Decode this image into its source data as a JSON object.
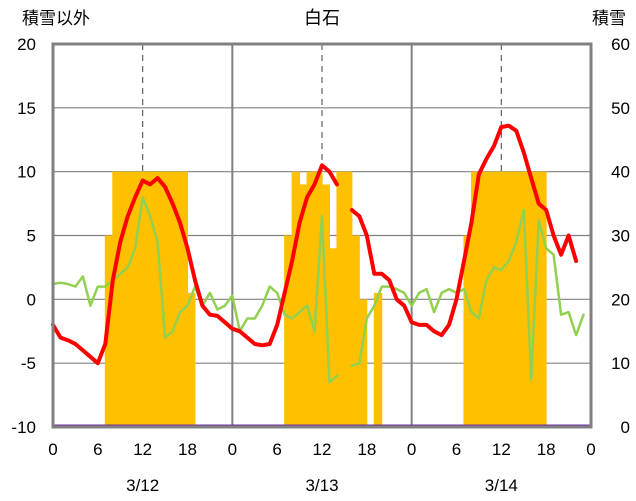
{
  "chart_data": {
    "type": "bar+line",
    "title": "白石",
    "left_axis_label": "積雪以外",
    "right_axis_label": "積雪",
    "y_left": {
      "min": -10,
      "max": 20,
      "ticks": [
        -10,
        -5,
        0,
        5,
        10,
        15,
        20
      ]
    },
    "y_right": {
      "min": 0,
      "max": 60,
      "ticks": [
        0,
        10,
        20,
        30,
        40,
        50,
        60
      ]
    },
    "x_hour_ticks": [
      0,
      6,
      12,
      18,
      0,
      6,
      12,
      18,
      0,
      6,
      12,
      18,
      0
    ],
    "dates": [
      "3/12",
      "3/13",
      "3/14"
    ],
    "colors": {
      "bars": "#FFC000",
      "line_red": "#FF0000",
      "line_green": "#92D050",
      "baseline": "#7030A0",
      "frame": "#808080"
    },
    "snow_bars": [
      [
        null,
        null,
        null,
        null,
        null,
        null,
        null,
        30,
        40,
        40,
        40,
        40,
        40,
        40,
        40,
        40,
        40,
        40,
        21,
        null,
        null,
        null,
        null,
        null
      ],
      [
        null,
        null,
        null,
        null,
        null,
        null,
        null,
        30,
        40,
        38,
        40,
        40,
        38,
        28,
        40,
        40,
        30,
        20,
        null,
        21,
        null,
        null,
        null,
        null
      ],
      [
        null,
        null,
        null,
        null,
        null,
        null,
        null,
        30,
        40,
        40,
        40,
        40,
        40,
        40,
        40,
        40,
        40,
        40,
        null,
        null,
        null,
        null,
        null,
        null
      ]
    ],
    "series_red": [
      -2,
      -3,
      -3.2,
      -3.5,
      -4,
      -4.5,
      -5,
      -3.5,
      1.5,
      4.5,
      6.5,
      8,
      9.3,
      9,
      9.5,
      8.8,
      7.5,
      6,
      4,
      1.5,
      -0.5,
      -1.2,
      -1.3,
      -1.8,
      -2.3,
      -2.5,
      -3,
      -3.5,
      -3.6,
      -3.5,
      -2,
      0.5,
      3,
      6,
      8,
      9,
      10.5,
      10,
      9,
      null,
      7,
      6.5,
      5,
      2,
      2,
      1.5,
      0,
      -0.5,
      -1.8,
      -2,
      -2,
      -2.5,
      -2.8,
      -2,
      0,
      3,
      6,
      9.8,
      11,
      12,
      13.5,
      13.6,
      13.2,
      11.5,
      9.5,
      7.5,
      7,
      5,
      3.5,
      5,
      3
    ],
    "series_green": [
      1.2,
      1.3,
      1.2,
      1,
      1.8,
      -0.5,
      1,
      1,
      1.5,
      2,
      2.5,
      4,
      8,
      6.5,
      4.5,
      -3,
      -2.5,
      -1,
      -0.5,
      1,
      -0.5,
      0.5,
      -0.8,
      -0.5,
      0.3,
      -2.5,
      -1.5,
      -1.5,
      -0.5,
      1,
      0.5,
      -1.2,
      -1.5,
      -1,
      -0.5,
      -2.5,
      6.5,
      -6.5,
      -6,
      null,
      -5.2,
      -5,
      -1.5,
      -0.5,
      1,
      1,
      0.8,
      0.5,
      -0.5,
      0.5,
      0.8,
      -1,
      0.5,
      0.8,
      0.5,
      0.8,
      -1,
      -1.5,
      1.5,
      2.5,
      2.3,
      3,
      4.5,
      7,
      -6.3,
      6.2,
      4,
      3.5,
      -1.2,
      -1,
      -2.8,
      -1.2
    ]
  }
}
